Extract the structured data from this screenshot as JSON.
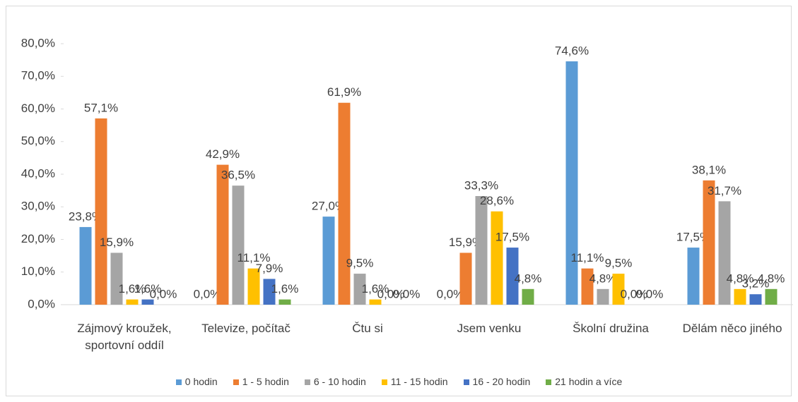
{
  "chart_data": {
    "type": "bar",
    "categories": [
      "Zájmový kroužek, sportovní oddíl",
      "Televize, počítač",
      "Čtu si",
      "Jsem venku",
      "Školní družina",
      "Dělám něco jiného"
    ],
    "series": [
      {
        "name": "0 hodin",
        "color": "#5b9bd5",
        "values": [
          23.8,
          0.0,
          27.0,
          0.0,
          74.6,
          17.5
        ],
        "value_labels": [
          "23,8%",
          "0,0%",
          "27,0%",
          "0,0%",
          "74,6%",
          "17,5%"
        ]
      },
      {
        "name": "1 - 5 hodin",
        "color": "#ed7d31",
        "values": [
          57.1,
          42.9,
          61.9,
          15.9,
          11.1,
          38.1
        ],
        "value_labels": [
          "57,1%",
          "42,9%",
          "61,9%",
          "15,9%",
          "11,1%",
          "38,1%"
        ]
      },
      {
        "name": "6 - 10 hodin",
        "color": "#a5a5a5",
        "values": [
          15.9,
          36.5,
          9.5,
          33.3,
          4.8,
          31.7
        ],
        "value_labels": [
          "15,9%",
          "36,5%",
          "9,5%",
          "33,3%",
          "4,8%",
          "31,7%"
        ]
      },
      {
        "name": "11 - 15 hodin",
        "color": "#ffc000",
        "values": [
          1.6,
          11.1,
          1.6,
          28.6,
          9.5,
          4.8
        ],
        "value_labels": [
          "1,6%",
          "11,1%",
          "1,6%",
          "28,6%",
          "9,5%",
          "4,8%"
        ]
      },
      {
        "name": "16 - 20 hodin",
        "color": "#4472c4",
        "values": [
          1.6,
          7.9,
          0.0,
          17.5,
          0.0,
          3.2
        ],
        "value_labels": [
          "1,6%",
          "7,9%",
          "0,0%",
          "17,5%",
          "0,0%",
          "3,2%"
        ]
      },
      {
        "name": "21 hodin a více",
        "color": "#70ad47",
        "values": [
          0.0,
          1.6,
          0.0,
          4.8,
          0.0,
          4.8
        ],
        "value_labels": [
          "0,0%",
          "1,6%",
          "0,0%",
          "4,8%",
          "0,0%",
          "4,8%"
        ]
      }
    ],
    "ylim": [
      0,
      80
    ],
    "yticks": [
      {
        "value": 0,
        "label": "0,0%"
      },
      {
        "value": 10,
        "label": "10,0%"
      },
      {
        "value": 20,
        "label": "20,0%"
      },
      {
        "value": 30,
        "label": "30,0%"
      },
      {
        "value": 40,
        "label": "40,0%"
      },
      {
        "value": 50,
        "label": "50,0%"
      },
      {
        "value": 60,
        "label": "60,0%"
      },
      {
        "value": 70,
        "label": "70,0%"
      },
      {
        "value": 80,
        "label": "80,0%"
      }
    ],
    "legend": "bottom"
  }
}
